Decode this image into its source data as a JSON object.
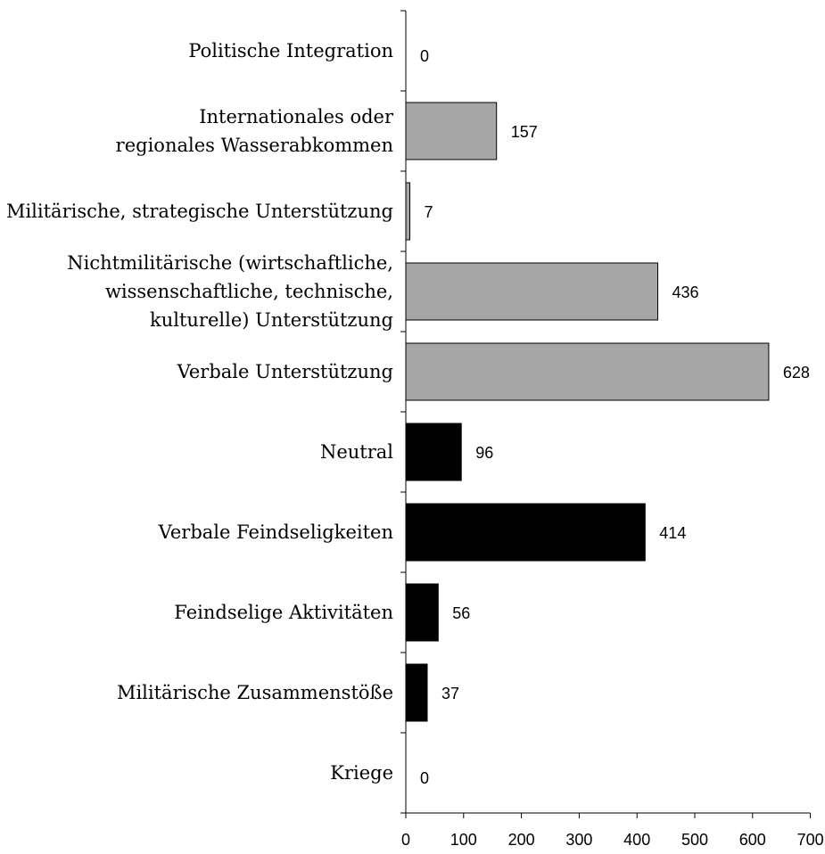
{
  "colors": {
    "cooperative": "#a6a6a6",
    "conflictive": "#000000",
    "neutral": "#000000",
    "axis": "#000000",
    "background": "#ffffff"
  },
  "chart_data": {
    "type": "bar",
    "orientation": "horizontal",
    "title": "",
    "xlabel": "",
    "ylabel": "",
    "xlim": [
      0,
      700
    ],
    "x_ticks": [
      0,
      100,
      200,
      300,
      400,
      500,
      600,
      700
    ],
    "grid": false,
    "legend": "none",
    "categories": [
      {
        "lines": [
          "Politische Integration"
        ],
        "value": 0,
        "group": "cooperative"
      },
      {
        "lines": [
          "Internationales oder",
          "regionales Wasserabkommen"
        ],
        "value": 157,
        "group": "cooperative"
      },
      {
        "lines": [
          "Militärische, strategische Unterstützung"
        ],
        "value": 7,
        "group": "cooperative"
      },
      {
        "lines": [
          "Nichtmilitärische (wirtschaftliche,",
          "wissenschaftliche, technische,",
          "kulturelle) Unterstützung"
        ],
        "value": 436,
        "group": "cooperative"
      },
      {
        "lines": [
          "Verbale Unterstützung"
        ],
        "value": 628,
        "group": "cooperative"
      },
      {
        "lines": [
          "Neutral"
        ],
        "value": 96,
        "group": "neutral"
      },
      {
        "lines": [
          "Verbale Feindseligkeiten"
        ],
        "value": 414,
        "group": "conflictive"
      },
      {
        "lines": [
          "Feindselige Aktivitäten"
        ],
        "value": 56,
        "group": "conflictive"
      },
      {
        "lines": [
          "Militärische Zusammenstöße"
        ],
        "value": 37,
        "group": "conflictive"
      },
      {
        "lines": [
          "Kriege"
        ],
        "value": 0,
        "group": "conflictive"
      }
    ]
  }
}
